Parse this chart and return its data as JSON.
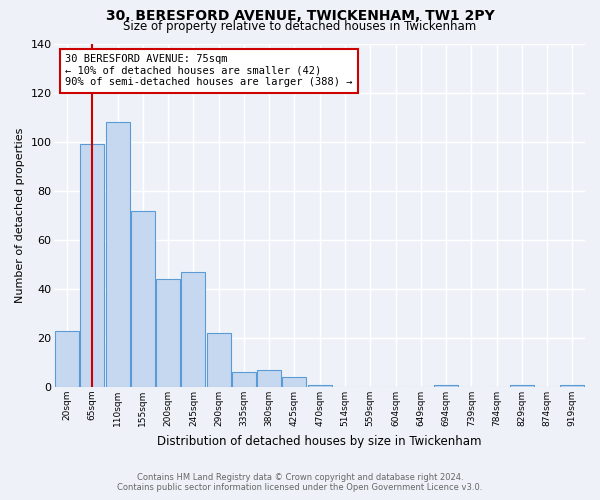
{
  "title": "30, BERESFORD AVENUE, TWICKENHAM, TW1 2PY",
  "subtitle": "Size of property relative to detached houses in Twickenham",
  "xlabel": "Distribution of detached houses by size in Twickenham",
  "ylabel": "Number of detached properties",
  "footer_line1": "Contains HM Land Registry data © Crown copyright and database right 2024.",
  "footer_line2": "Contains public sector information licensed under the Open Government Licence v3.0.",
  "categories": [
    "20sqm",
    "65sqm",
    "110sqm",
    "155sqm",
    "200sqm",
    "245sqm",
    "290sqm",
    "335sqm",
    "380sqm",
    "425sqm",
    "470sqm",
    "514sqm",
    "559sqm",
    "604sqm",
    "649sqm",
    "694sqm",
    "739sqm",
    "784sqm",
    "829sqm",
    "874sqm",
    "919sqm"
  ],
  "values": [
    23,
    99,
    108,
    72,
    44,
    47,
    22,
    6,
    7,
    4,
    1,
    0,
    0,
    0,
    0,
    1,
    0,
    0,
    1,
    0,
    1
  ],
  "bar_color": "#c5d8f0",
  "bar_edge_color": "#5b9bd5",
  "background_color": "#eef2f8",
  "grid_color": "#ffffff",
  "red_line_x": 1,
  "annotation_line1": "30 BERESFORD AVENUE: 75sqm",
  "annotation_line2": "← 10% of detached houses are smaller (42)",
  "annotation_line3": "90% of semi-detached houses are larger (388) →",
  "annotation_box_color": "#ffffff",
  "annotation_box_edge_color": "#cc0000",
  "ylim": [
    0,
    140
  ],
  "yticks": [
    0,
    20,
    40,
    60,
    80,
    100,
    120,
    140
  ]
}
